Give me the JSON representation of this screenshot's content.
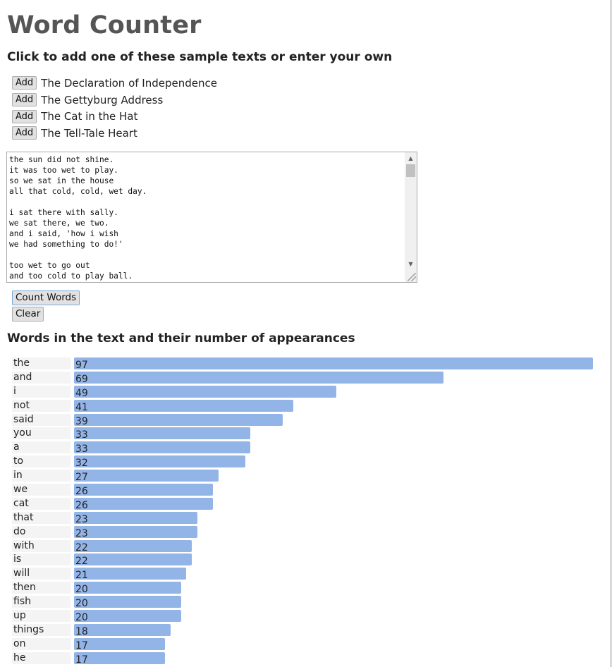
{
  "title": "Word Counter",
  "subtitle": "Click to add one of these sample texts or enter your own",
  "samples": [
    {
      "button": "Add",
      "label": "The Declaration of Independence"
    },
    {
      "button": "Add",
      "label": "The Gettyburg Address"
    },
    {
      "button": "Add",
      "label": "The Cat in the Hat"
    },
    {
      "button": "Add",
      "label": "The Tell-Tale Heart"
    }
  ],
  "textarea": {
    "value": "the sun did not shine.\nit was too wet to play.\nso we sat in the house\nall that cold, cold, wet day.\n\ni sat there with sally.\nwe sat there, we two.\nand i said, 'how i wish\nwe had something to do!'\n\ntoo wet to go out\nand too cold to play ball."
  },
  "buttons": {
    "count": "Count Words",
    "clear": "Clear"
  },
  "results_title": "Words in the text and their number of appearances",
  "colors": {
    "bar": "#93b4e6",
    "title": "#555555"
  },
  "chart_data": {
    "type": "bar",
    "orientation": "horizontal",
    "xlim": [
      0,
      97
    ],
    "categories": [
      "the",
      "and",
      "i",
      "not",
      "said",
      "you",
      "a",
      "to",
      "in",
      "we",
      "cat",
      "that",
      "do",
      "with",
      "is",
      "will",
      "then",
      "fish",
      "up",
      "things",
      "on",
      "he"
    ],
    "values": [
      97,
      69,
      49,
      41,
      39,
      33,
      33,
      32,
      27,
      26,
      26,
      23,
      23,
      22,
      22,
      21,
      20,
      20,
      20,
      18,
      17,
      17
    ]
  }
}
